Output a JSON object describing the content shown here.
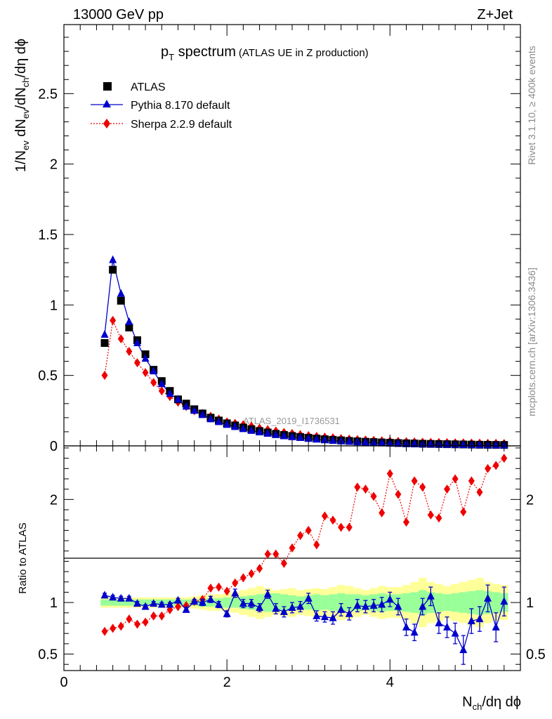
{
  "header": {
    "energy_label": "13000 GeV pp",
    "process_label": "Z+Jet"
  },
  "side_labels": {
    "rivet": "Rivet 3.1.10, ≥ 400k events",
    "source": "mcplots.cern.ch [arXiv:1306.3436]"
  },
  "watermark": "ATLAS_2019_I1736531",
  "colors": {
    "atlas": "#000000",
    "pythia": "#0000cc",
    "sherpa": "#ee0000",
    "band_inner": "#99ff99",
    "band_outer": "#ffff99"
  },
  "chart_data": [
    {
      "type": "scatter",
      "panel": "main",
      "title": {
        "main": "p",
        "sub": "T",
        "rest": " spectrum",
        "note": "(ATLAS UE in Z production)"
      },
      "ylabel": {
        "a": "1/N",
        "a_sub": "ev",
        "b": " dN",
        "b_sub": "ev",
        "c": "/dN",
        "c_sub": "ch",
        "d": "/dη dϕ"
      },
      "xlim": [
        0,
        5.6
      ],
      "ylim": [
        0,
        2.99
      ],
      "yticks": [
        0,
        0.5,
        1,
        1.5,
        2,
        2.5
      ],
      "ytick_labels": [
        "0",
        "0.5",
        "1",
        "1.5",
        "2",
        "2.5"
      ],
      "series": [
        {
          "name": "ATLAS",
          "marker": "square",
          "x": [
            0.5,
            0.6,
            0.7,
            0.8,
            0.9,
            1.0,
            1.1,
            1.2,
            1.3,
            1.4,
            1.5,
            1.6,
            1.7,
            1.8,
            1.9,
            2.0,
            2.1,
            2.2,
            2.3,
            2.4,
            2.5,
            2.6,
            2.7,
            2.8,
            2.9,
            3.0,
            3.1,
            3.2,
            3.3,
            3.4,
            3.5,
            3.6,
            3.7,
            3.8,
            3.9,
            4.0,
            4.1,
            4.2,
            4.3,
            4.4,
            4.5,
            4.6,
            4.7,
            4.8,
            4.9,
            5.0,
            5.1,
            5.2,
            5.3,
            5.4
          ],
          "y": [
            0.73,
            1.25,
            1.03,
            0.84,
            0.75,
            0.65,
            0.54,
            0.46,
            0.39,
            0.33,
            0.3,
            0.26,
            0.23,
            0.2,
            0.18,
            0.16,
            0.145,
            0.13,
            0.118,
            0.105,
            0.095,
            0.085,
            0.077,
            0.07,
            0.063,
            0.057,
            0.052,
            0.047,
            0.043,
            0.039,
            0.035,
            0.032,
            0.029,
            0.027,
            0.024,
            0.022,
            0.02,
            0.018,
            0.017,
            0.015,
            0.014,
            0.013,
            0.012,
            0.011,
            0.01,
            0.009,
            0.008,
            0.0075,
            0.007,
            0.0065
          ]
        },
        {
          "name": "Pythia 8.170 default",
          "marker": "triangle",
          "line": "solid",
          "x": [
            0.5,
            0.6,
            0.7,
            0.8,
            0.9,
            1.0,
            1.1,
            1.2,
            1.3,
            1.4,
            1.5,
            1.6,
            1.7,
            1.8,
            1.9,
            2.0,
            2.1,
            2.2,
            2.3,
            2.4,
            2.5,
            2.6,
            2.7,
            2.8,
            2.9,
            3.0,
            3.1,
            3.2,
            3.3,
            3.4,
            3.5,
            3.6,
            3.7,
            3.8,
            3.9,
            4.0,
            4.1,
            4.2,
            4.3,
            4.4,
            4.5,
            4.6,
            4.7,
            4.8,
            4.9,
            5.0,
            5.1,
            5.2,
            5.3,
            5.4
          ],
          "y": [
            0.79,
            1.32,
            1.08,
            0.88,
            0.73,
            0.62,
            0.53,
            0.44,
            0.37,
            0.33,
            0.28,
            0.25,
            0.22,
            0.19,
            0.17,
            0.15,
            0.135,
            0.12,
            0.108,
            0.097,
            0.087,
            0.078,
            0.07,
            0.063,
            0.057,
            0.051,
            0.046,
            0.041,
            0.037,
            0.033,
            0.03,
            0.027,
            0.024,
            0.022,
            0.02,
            0.018,
            0.016,
            0.014,
            0.013,
            0.012,
            0.011,
            0.01,
            0.009,
            0.008,
            0.007,
            0.006,
            0.0055,
            0.005,
            0.0045,
            0.004
          ]
        },
        {
          "name": "Sherpa 2.2.9 default",
          "marker": "diamond",
          "line": "dotted",
          "x": [
            0.5,
            0.6,
            0.7,
            0.8,
            0.9,
            1.0,
            1.1,
            1.2,
            1.3,
            1.4,
            1.5,
            1.6,
            1.7,
            1.8,
            1.9,
            2.0,
            2.1,
            2.2,
            2.3,
            2.4,
            2.5,
            2.6,
            2.7,
            2.8,
            2.9,
            3.0,
            3.1,
            3.2,
            3.3,
            3.4,
            3.5,
            3.6,
            3.7,
            3.8,
            3.9,
            4.0,
            4.1,
            4.2,
            4.3,
            4.4,
            4.5,
            4.6,
            4.7,
            4.8,
            4.9,
            5.0,
            5.1,
            5.2,
            5.3,
            5.4
          ],
          "y": [
            0.5,
            0.89,
            0.76,
            0.67,
            0.59,
            0.52,
            0.45,
            0.39,
            0.35,
            0.31,
            0.28,
            0.25,
            0.23,
            0.21,
            0.19,
            0.17,
            0.16,
            0.15,
            0.14,
            0.125,
            0.115,
            0.105,
            0.095,
            0.088,
            0.08,
            0.073,
            0.067,
            0.062,
            0.057,
            0.052,
            0.048,
            0.045,
            0.042,
            0.039,
            0.036,
            0.034,
            0.032,
            0.03,
            0.028,
            0.026,
            0.025,
            0.024,
            0.023,
            0.022,
            0.021,
            0.02,
            0.019,
            0.018,
            0.018,
            0.017
          ]
        }
      ]
    },
    {
      "type": "scatter",
      "panel": "ratio",
      "ylabel": "Ratio to ATLAS",
      "xlabel": {
        "a": "N",
        "a_sub": "ch",
        "b": "/dη dϕ"
      },
      "xlim": [
        0,
        5.6
      ],
      "ylim": [
        0.34,
        2.52
      ],
      "xticks": [
        0,
        2,
        4
      ],
      "xtick_labels": [
        "0",
        "2",
        "4"
      ],
      "yticks": [
        0.5,
        1,
        2
      ],
      "ytick_labels": [
        "0.5",
        "1",
        "2"
      ],
      "bands": {
        "x": [
          0.5,
          0.6,
          0.7,
          0.8,
          0.9,
          1.0,
          1.1,
          1.2,
          1.3,
          1.4,
          1.5,
          1.6,
          1.7,
          1.8,
          1.9,
          2.0,
          2.1,
          2.2,
          2.3,
          2.4,
          2.5,
          2.6,
          2.7,
          2.8,
          2.9,
          3.0,
          3.1,
          3.2,
          3.3,
          3.4,
          3.5,
          3.6,
          3.7,
          3.8,
          3.9,
          4.0,
          4.1,
          4.2,
          4.3,
          4.4,
          4.5,
          4.6,
          4.7,
          4.8,
          4.9,
          5.0,
          5.1,
          5.2,
          5.3,
          5.4
        ],
        "inner": [
          0.03,
          0.03,
          0.03,
          0.03,
          0.03,
          0.03,
          0.03,
          0.03,
          0.03,
          0.03,
          0.03,
          0.03,
          0.04,
          0.04,
          0.04,
          0.05,
          0.05,
          0.06,
          0.07,
          0.08,
          0.09,
          0.09,
          0.08,
          0.07,
          0.06,
          0.07,
          0.08,
          0.07,
          0.08,
          0.09,
          0.08,
          0.08,
          0.07,
          0.08,
          0.09,
          0.08,
          0.08,
          0.09,
          0.1,
          0.12,
          0.1,
          0.09,
          0.08,
          0.09,
          0.1,
          0.11,
          0.12,
          0.11,
          0.1,
          0.09
        ],
        "outer": [
          0.05,
          0.05,
          0.05,
          0.05,
          0.05,
          0.05,
          0.05,
          0.05,
          0.05,
          0.05,
          0.05,
          0.06,
          0.07,
          0.08,
          0.08,
          0.09,
          0.1,
          0.12,
          0.14,
          0.16,
          0.14,
          0.12,
          0.13,
          0.14,
          0.12,
          0.13,
          0.14,
          0.13,
          0.15,
          0.17,
          0.16,
          0.14,
          0.12,
          0.14,
          0.16,
          0.15,
          0.15,
          0.17,
          0.2,
          0.24,
          0.2,
          0.18,
          0.16,
          0.18,
          0.2,
          0.22,
          0.24,
          0.2,
          0.18,
          0.17
        ]
      },
      "series": [
        {
          "name": "Pythia 8.170 default",
          "x": [
            0.5,
            0.6,
            0.7,
            0.8,
            0.9,
            1.0,
            1.1,
            1.2,
            1.3,
            1.4,
            1.5,
            1.6,
            1.7,
            1.8,
            1.9,
            2.0,
            2.1,
            2.2,
            2.3,
            2.4,
            2.5,
            2.6,
            2.7,
            2.8,
            2.9,
            3.0,
            3.1,
            3.2,
            3.3,
            3.4,
            3.5,
            3.6,
            3.7,
            3.8,
            3.9,
            4.0,
            4.1,
            4.2,
            4.3,
            4.4,
            4.5,
            4.6,
            4.7,
            4.8,
            4.9,
            5.0,
            5.1,
            5.2,
            5.3,
            5.4
          ],
          "y": [
            1.07,
            1.05,
            1.04,
            1.04,
            0.99,
            0.96,
            0.99,
            0.98,
            0.98,
            1.02,
            0.93,
            1.01,
            1.0,
            1.03,
            0.98,
            0.89,
            1.09,
            0.99,
            0.99,
            0.95,
            1.08,
            0.94,
            0.91,
            0.95,
            0.96,
            1.04,
            0.87,
            0.86,
            0.85,
            0.93,
            0.89,
            0.97,
            0.96,
            0.97,
            0.98,
            1.03,
            0.96,
            0.76,
            0.71,
            0.96,
            1.06,
            0.8,
            0.76,
            0.7,
            0.54,
            0.82,
            0.84,
            1.04,
            0.76,
            1.01
          ],
          "err": [
            0.02,
            0.02,
            0.02,
            0.02,
            0.02,
            0.02,
            0.02,
            0.02,
            0.02,
            0.02,
            0.02,
            0.02,
            0.03,
            0.03,
            0.03,
            0.03,
            0.04,
            0.04,
            0.04,
            0.04,
            0.04,
            0.05,
            0.05,
            0.05,
            0.05,
            0.05,
            0.05,
            0.05,
            0.06,
            0.06,
            0.06,
            0.06,
            0.06,
            0.06,
            0.07,
            0.07,
            0.08,
            0.08,
            0.08,
            0.08,
            0.09,
            0.1,
            0.1,
            0.1,
            0.14,
            0.12,
            0.12,
            0.13,
            0.14,
            0.14
          ]
        },
        {
          "name": "Sherpa 2.2.9 default",
          "x": [
            0.5,
            0.6,
            0.7,
            0.8,
            0.9,
            1.0,
            1.1,
            1.2,
            1.3,
            1.4,
            1.5,
            1.6,
            1.7,
            1.8,
            1.9,
            2.0,
            2.1,
            2.2,
            2.3,
            2.4,
            2.5,
            2.6,
            2.7,
            2.8,
            2.9,
            3.0,
            3.1,
            3.2,
            3.3,
            3.4,
            3.5,
            3.6,
            3.7,
            3.8,
            3.9,
            4.0,
            4.1,
            4.2,
            4.3,
            4.4,
            4.5,
            4.6,
            4.7,
            4.8,
            4.9,
            5.0,
            5.1,
            5.2,
            5.3,
            5.4
          ],
          "y": [
            0.72,
            0.75,
            0.77,
            0.84,
            0.79,
            0.81,
            0.87,
            0.87,
            0.93,
            0.96,
            0.97,
            1.01,
            1.03,
            1.14,
            1.15,
            1.11,
            1.19,
            1.24,
            1.28,
            1.33,
            1.47,
            1.47,
            1.38,
            1.53,
            1.65,
            1.7,
            1.56,
            1.84,
            1.8,
            1.73,
            1.73,
            2.12,
            2.1,
            2.03,
            1.87,
            2.25,
            2.05,
            1.78,
            2.18,
            2.12,
            1.85,
            1.82,
            2.1,
            2.2,
            1.88,
            2.18,
            2.07,
            2.3,
            2.33,
            2.4
          ]
        }
      ]
    }
  ]
}
